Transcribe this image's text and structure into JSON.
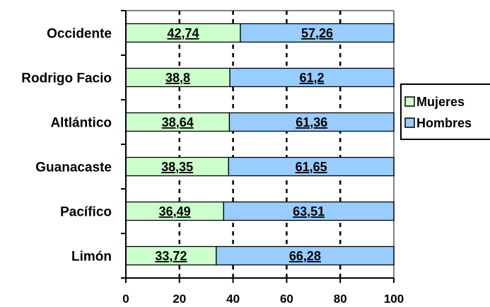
{
  "chart_data": {
    "type": "bar",
    "orientation": "horizontal",
    "stacked": true,
    "categories": [
      "Occidente",
      "Rodrigo Facio",
      "Altlántico",
      "Guanacaste",
      "Pacífico",
      "Limón"
    ],
    "series": [
      {
        "name": "Mujeres",
        "values": [
          42.74,
          38.8,
          38.64,
          38.35,
          36.49,
          33.72
        ],
        "labels": [
          "42,74",
          "38,8",
          "38,64",
          "38,35",
          "36,49",
          "33,72"
        ],
        "color": "#ccffcc"
      },
      {
        "name": "Hombres",
        "values": [
          57.26,
          61.2,
          61.36,
          61.65,
          63.51,
          66.28
        ],
        "labels": [
          "57,26",
          "61,2",
          "61,36",
          "61,65",
          "63,51",
          "66,28"
        ],
        "color": "#99ccff"
      }
    ],
    "xlim": [
      0,
      100
    ],
    "xticks": [
      0,
      20,
      40,
      60,
      80,
      100
    ],
    "xtick_labels": [
      "0",
      "20",
      "40",
      "60",
      "80",
      "100"
    ],
    "grid": "vertical dashed",
    "legend": "right"
  }
}
